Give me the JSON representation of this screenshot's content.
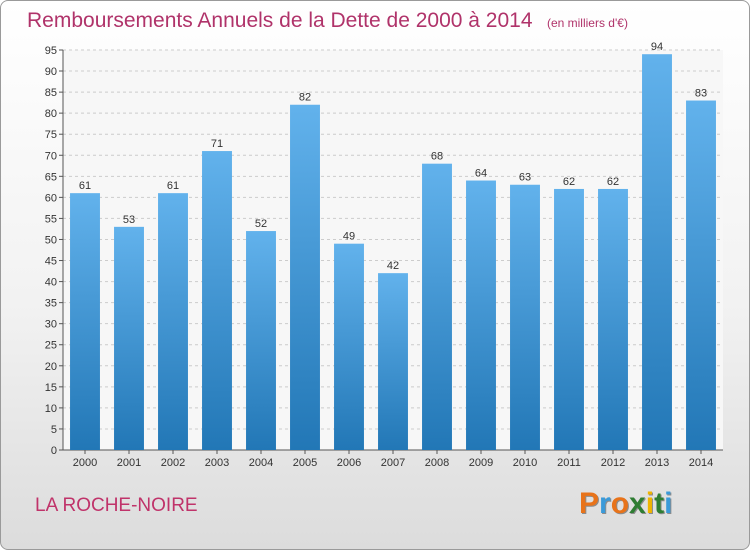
{
  "title": {
    "main": "Remboursements Annuels de la Dette de 2000 à 2014",
    "unit": "(en milliers d'€)"
  },
  "commune": "LA ROCHE-NOIRE",
  "logo": {
    "letters": [
      "P",
      "r",
      "o",
      "x",
      "i",
      "t",
      "i"
    ],
    "colors": [
      "#e8731a",
      "#3a9ad9",
      "#e8731a",
      "#2e7d32",
      "#f0b400",
      "#2e7d32",
      "#3a9ad9"
    ]
  },
  "colors": {
    "bar_top": "#62b2ec",
    "bar_bottom": "#2277b6",
    "grid": "#cccccc",
    "title": "#b0336a"
  },
  "chart_data": {
    "type": "bar",
    "title": "Remboursements Annuels de la Dette de 2000 à 2014",
    "subtitle": "(en milliers d'€)",
    "xlabel": "",
    "ylabel": "",
    "categories": [
      "2000",
      "2001",
      "2002",
      "2003",
      "2004",
      "2005",
      "2006",
      "2007",
      "2008",
      "2009",
      "2010",
      "2011",
      "2012",
      "2013",
      "2014"
    ],
    "values": [
      61,
      53,
      61,
      71,
      52,
      82,
      49,
      42,
      68,
      64,
      63,
      62,
      62,
      94,
      83
    ],
    "ylim": [
      0,
      95
    ],
    "yticks": [
      0,
      5,
      10,
      15,
      20,
      25,
      30,
      35,
      40,
      45,
      50,
      55,
      60,
      65,
      70,
      75,
      80,
      85,
      90,
      95
    ],
    "grid": true
  }
}
